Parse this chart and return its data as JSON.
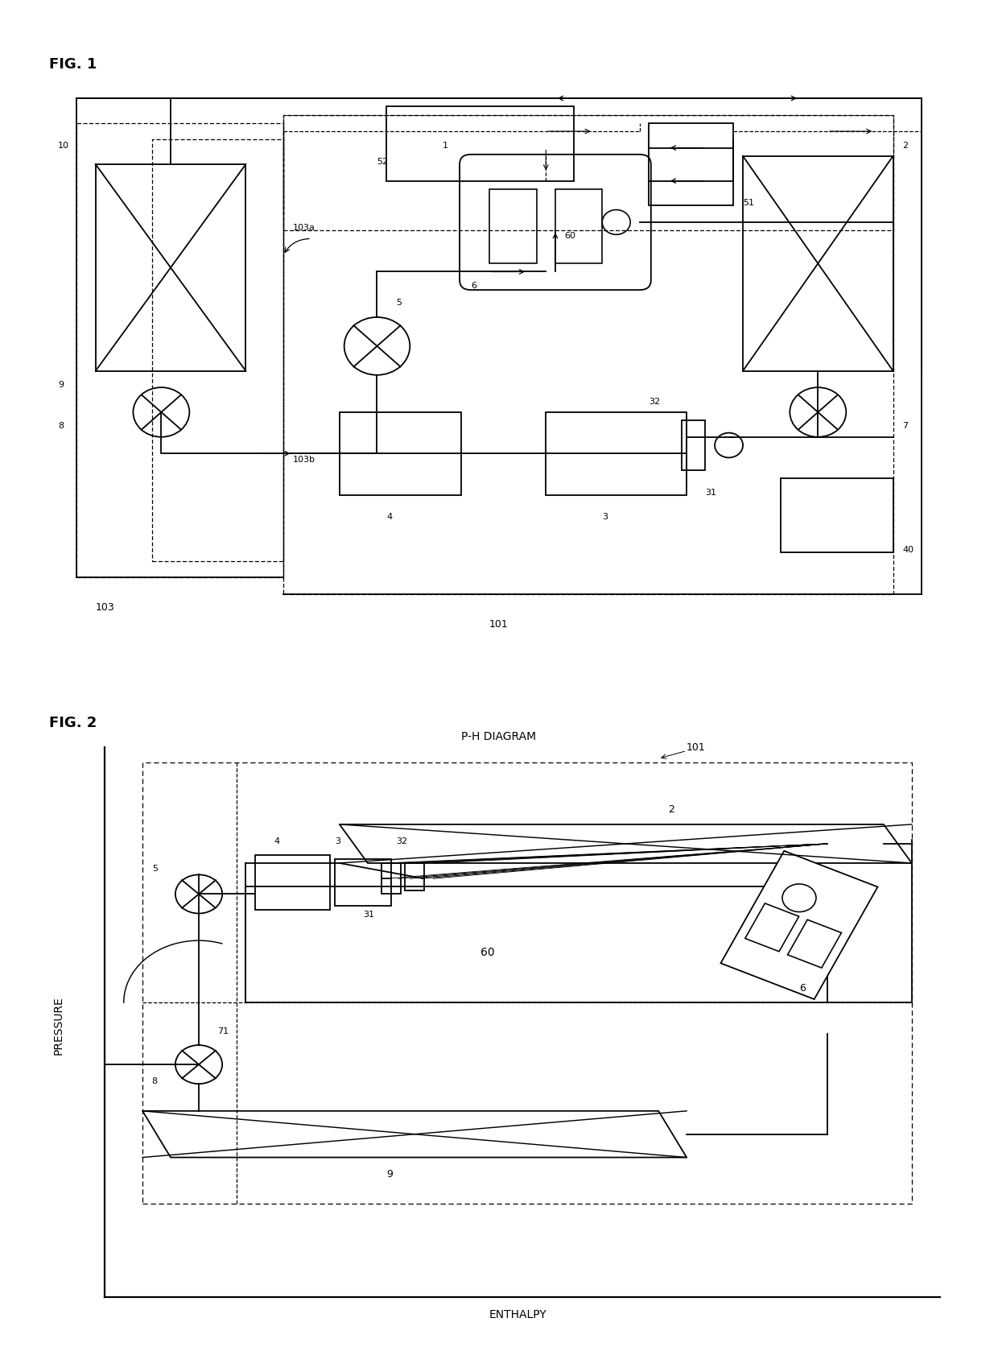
{
  "fig_width": 12.4,
  "fig_height": 16.73,
  "bg_color": "#ffffff",
  "fig1_label": "FIG. 1",
  "fig2_label": "FIG. 2",
  "fig2_title": "P-H DIAGRAM",
  "fig2_xlabel": "ENTHALPY",
  "fig2_ylabel": "PRESSURE"
}
